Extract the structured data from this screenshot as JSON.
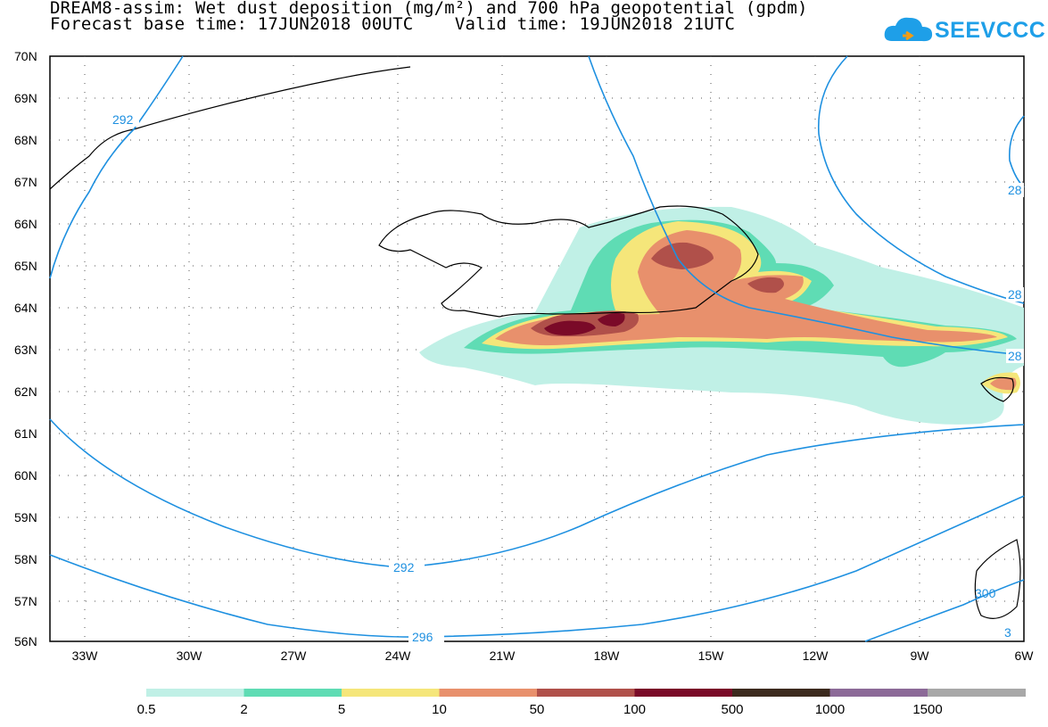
{
  "title_line1": "DREAM8-assim: Wet dust deposition (mg/m²) and 700 hPa geopotential (gpdm)",
  "title_line2": "Forecast base time: 17JUN2018 00UTC    Valid time: 19JUN2018 21UTC",
  "logo_text": "SEEVCCC",
  "lat_labels": [
    "70N",
    "69N",
    "68N",
    "67N",
    "66N",
    "65N",
    "64N",
    "63N",
    "62N",
    "61N",
    "60N",
    "59N",
    "58N",
    "57N",
    "56N"
  ],
  "lon_labels": [
    "33W",
    "30W",
    "27W",
    "24W",
    "21W",
    "18W",
    "15W",
    "12W",
    "9W",
    "6W"
  ],
  "contour_labels": [
    "292",
    "292",
    "296",
    "28",
    "28",
    "28",
    "300",
    "3"
  ],
  "legend": {
    "colors": [
      "#c0f0e6",
      "#5fdcb4",
      "#f5e67a",
      "#e8906c",
      "#b0504a",
      "#7a0a28",
      "#3c2a1e",
      "#8c6a98",
      "#a8a8a8"
    ],
    "labels": [
      "0.5",
      "2",
      "5",
      "10",
      "50",
      "100",
      "500",
      "1000",
      "1500"
    ]
  }
}
